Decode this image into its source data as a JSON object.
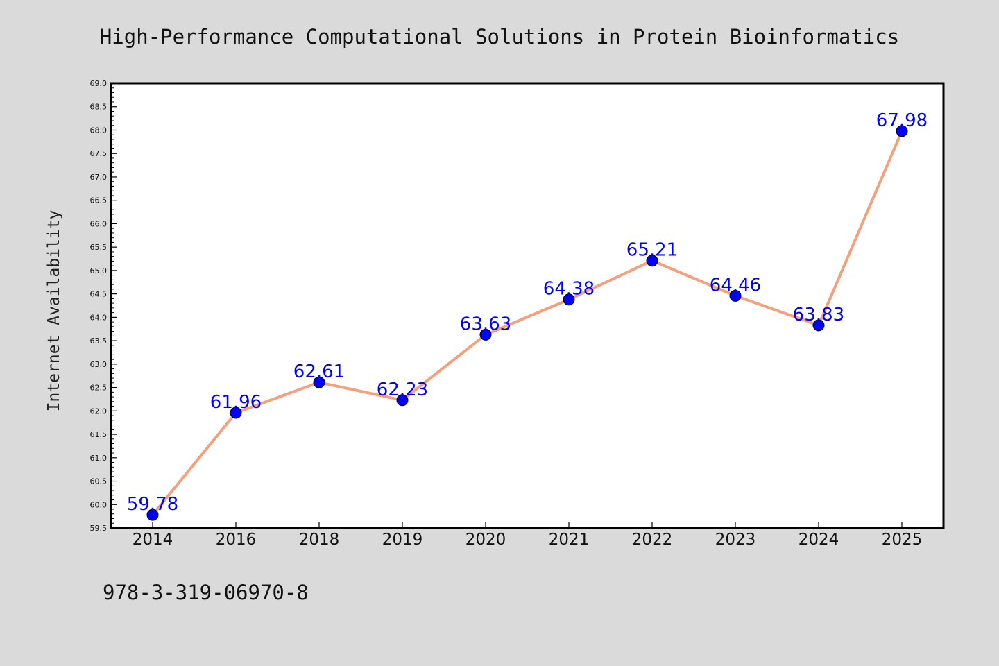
{
  "chart_data": {
    "type": "line",
    "title": "High-Performance Computational Solutions in Protein Bioinformatics",
    "xlabel": "",
    "ylabel": "Internet Availability",
    "categories": [
      "2014",
      "2016",
      "2018",
      "2019",
      "2020",
      "2021",
      "2022",
      "2023",
      "2024",
      "2025"
    ],
    "series": [
      {
        "values": [
          59.78,
          61.96,
          62.61,
          62.23,
          63.63,
          64.38,
          65.21,
          64.46,
          63.83,
          67.98
        ]
      }
    ],
    "data_labels": [
      "59.78",
      "61.96",
      "62.61",
      "62.23",
      "63.63",
      "64.38",
      "65.21",
      "64.46",
      "63.83",
      "67.98"
    ],
    "ylim": [
      59.5,
      69.0
    ],
    "yticks": [
      "59.5",
      "60.0",
      "60.5",
      "61.0",
      "61.5",
      "62.0",
      "62.5",
      "63.0",
      "63.5",
      "64.0",
      "64.5",
      "65.0",
      "65.5",
      "66.0",
      "66.5",
      "67.0",
      "67.5",
      "68.0",
      "68.5",
      "69.0"
    ],
    "grid": false,
    "legend": "none",
    "colors": {
      "line": "#f4a07c",
      "marker": "#0000ff",
      "data_label": "#0000ff",
      "background": "#dadada",
      "plot_area": "#ffffff"
    }
  },
  "footer": {
    "isbn": "978-3-319-06970-8"
  }
}
